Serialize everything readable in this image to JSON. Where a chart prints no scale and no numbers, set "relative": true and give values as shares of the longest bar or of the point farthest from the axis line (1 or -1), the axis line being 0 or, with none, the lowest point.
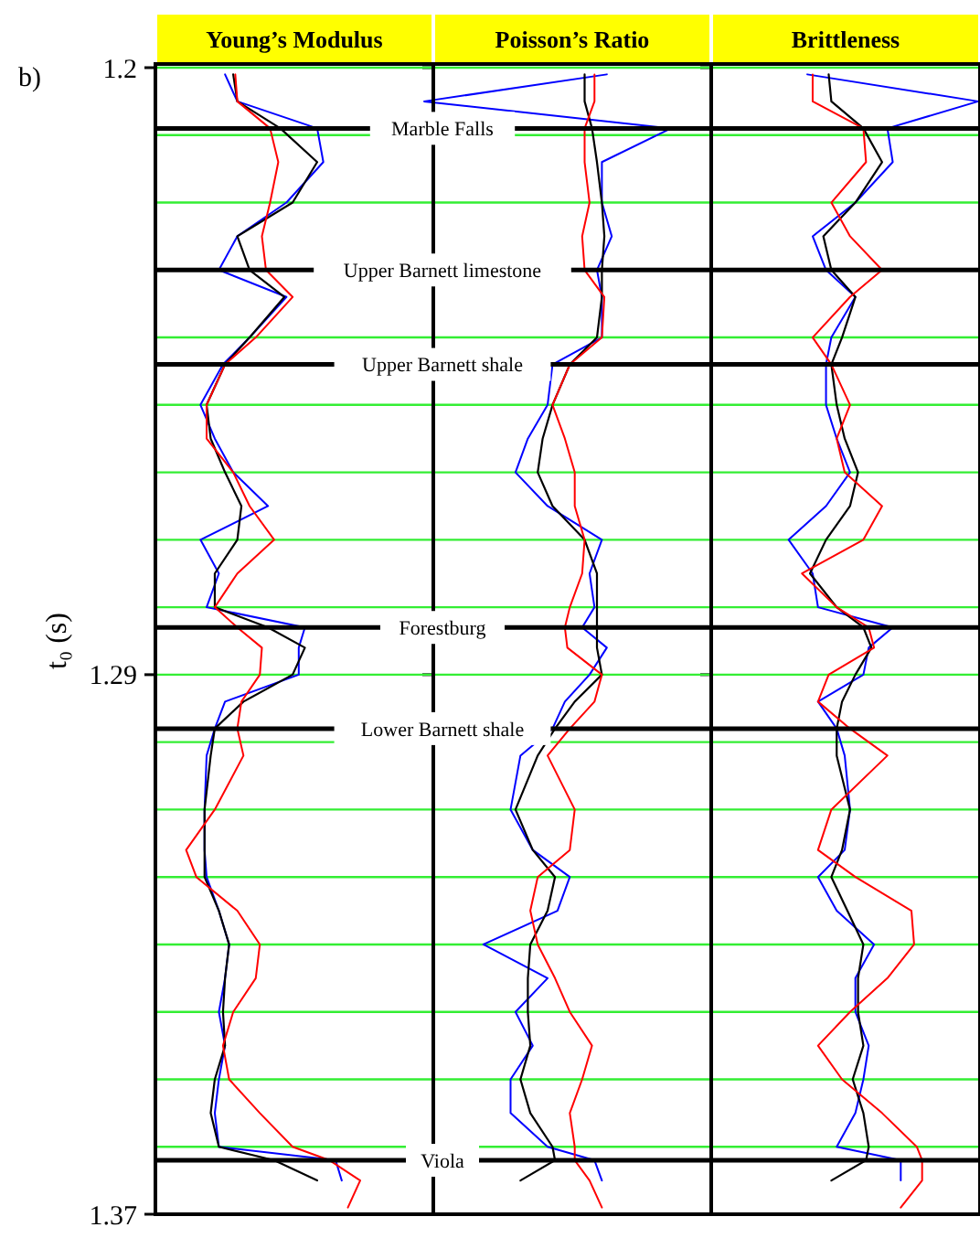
{
  "chart_data": [
    {
      "type": "line",
      "title": "Young’s Modulus",
      "ylabel": "t₀ (s)",
      "annotations": [
        "b)"
      ],
      "relative": true,
      "orientation": "horizontal",
      "ylim": [
        1.37,
        1.2
      ],
      "yticks": [
        1.2,
        {
          "value": 1.21,
          "label": null
        },
        {
          "value": 1.22,
          "label": null
        },
        {
          "value": 1.23,
          "label": null
        },
        {
          "value": 1.24,
          "label": null
        },
        {
          "value": 1.25,
          "label": null
        },
        {
          "value": 1.26,
          "label": null
        },
        {
          "value": 1.27,
          "label": null
        },
        {
          "value": 1.28,
          "label": null
        },
        1.29,
        {
          "value": 1.3,
          "label": null
        },
        {
          "value": 1.31,
          "label": null
        },
        {
          "value": 1.32,
          "label": null
        },
        {
          "value": 1.33,
          "label": null
        },
        {
          "value": 1.34,
          "label": null
        },
        {
          "value": 1.35,
          "label": null
        },
        {
          "value": 1.36,
          "label": null
        },
        1.37
      ],
      "grid": "y",
      "tick_labels": "y",
      "x": [
        1.201,
        1.205,
        1.209,
        1.214,
        1.22,
        1.225,
        1.23,
        1.234,
        1.24,
        1.244,
        1.25,
        1.255,
        1.26,
        1.265,
        1.27,
        1.275,
        1.28,
        1.283,
        1.286,
        1.29,
        1.294,
        1.298,
        1.302,
        1.31,
        1.316,
        1.32,
        1.325,
        1.33,
        1.335,
        1.34,
        1.345,
        1.35,
        1.355,
        1.36,
        1.362,
        1.365,
        1.369
      ],
      "series": [
        {
          "color": "#0000ff",
          "values": [
            0.34,
            0.4,
            0.79,
            0.82,
            0.64,
            0.4,
            0.31,
            0.64,
            0.46,
            0.33,
            0.22,
            0.29,
            0.38,
            0.55,
            0.22,
            0.31,
            0.25,
            0.73,
            0.7,
            0.7,
            0.34,
            0.29,
            0.25,
            0.24,
            0.24,
            0.25,
            0.31,
            0.36,
            0.34,
            0.31,
            0.34,
            0.31,
            0.29,
            0.31,
            0.88,
            0.91,
            null
          ]
        },
        {
          "color": "#000000",
          "values": [
            0.38,
            0.4,
            0.61,
            0.79,
            0.67,
            0.4,
            0.46,
            0.63,
            0.46,
            0.34,
            0.25,
            0.27,
            0.34,
            0.42,
            0.4,
            0.29,
            0.29,
            0.55,
            0.73,
            0.67,
            0.43,
            0.29,
            0.27,
            0.24,
            0.24,
            0.24,
            0.31,
            0.36,
            0.34,
            0.33,
            0.34,
            0.29,
            0.27,
            0.31,
            0.58,
            0.79,
            null
          ]
        },
        {
          "color": "#ff0000",
          "values": [
            0.39,
            0.4,
            0.56,
            0.6,
            0.56,
            0.52,
            0.54,
            0.67,
            0.49,
            0.34,
            0.25,
            0.25,
            0.38,
            0.46,
            0.58,
            0.4,
            0.29,
            0.4,
            0.52,
            0.51,
            0.42,
            0.4,
            0.43,
            0.29,
            0.15,
            0.2,
            0.4,
            0.51,
            0.49,
            0.38,
            0.33,
            0.36,
            0.51,
            0.67,
            0.85,
            1.0,
            0.94
          ]
        }
      ],
      "ref_lines": [
        {
          "axis": "y",
          "value": 1.209,
          "label": "Marble Falls"
        },
        {
          "axis": "y",
          "value": 1.23,
          "label": "Upper Barnett limestone"
        },
        {
          "axis": "y",
          "value": 1.244,
          "label": "Upper Barnett shale"
        },
        {
          "axis": "y",
          "value": 1.283,
          "label": "Forestburg"
        },
        {
          "axis": "y",
          "value": 1.298,
          "label": "Lower Barnett shale"
        },
        {
          "axis": "y",
          "value": 1.362,
          "label": "Viola"
        }
      ]
    },
    {
      "type": "line",
      "title": "Poisson’s Ratio",
      "relative": true,
      "orientation": "horizontal",
      "ylim": [
        1.37,
        1.2
      ],
      "yticks": [
        1.2,
        {
          "value": 1.21,
          "label": null
        },
        {
          "value": 1.22,
          "label": null
        },
        {
          "value": 1.23,
          "label": null
        },
        {
          "value": 1.24,
          "label": null
        },
        {
          "value": 1.25,
          "label": null
        },
        {
          "value": 1.26,
          "label": null
        },
        {
          "value": 1.27,
          "label": null
        },
        {
          "value": 1.28,
          "label": null
        },
        1.29,
        {
          "value": 1.3,
          "label": null
        },
        {
          "value": 1.31,
          "label": null
        },
        {
          "value": 1.32,
          "label": null
        },
        {
          "value": 1.33,
          "label": null
        },
        {
          "value": 1.34,
          "label": null
        },
        {
          "value": 1.35,
          "label": null
        },
        {
          "value": 1.36,
          "label": null
        },
        1.37
      ],
      "grid": "y",
      "tick_labels": false,
      "x": [
        1.201,
        1.205,
        1.209,
        1.214,
        1.22,
        1.225,
        1.23,
        1.234,
        1.24,
        1.244,
        1.25,
        1.255,
        1.26,
        1.265,
        1.27,
        1.275,
        1.28,
        1.283,
        1.286,
        1.29,
        1.294,
        1.298,
        1.302,
        1.31,
        1.316,
        1.32,
        1.325,
        1.33,
        1.335,
        1.34,
        1.345,
        1.35,
        1.355,
        1.36,
        1.362,
        1.365,
        1.369
      ],
      "series": [
        {
          "color": "#0000ff",
          "values": [
            0.74,
            0,
            1.0,
            0.72,
            0.72,
            0.76,
            0.7,
            0.72,
            0.72,
            0.52,
            0.5,
            0.42,
            0.37,
            0.5,
            0.72,
            0.67,
            0.69,
            0.64,
            0.74,
            0.67,
            0.57,
            0.52,
            0.39,
            0.35,
            0.44,
            0.59,
            0.54,
            0.24,
            0.5,
            0.37,
            0.44,
            0.35,
            0.35,
            0.5,
            0.69,
            0.72,
            null
          ]
        },
        {
          "color": "#000000",
          "values": [
            0.65,
            0.65,
            0.68,
            0.7,
            0.72,
            0.73,
            0.72,
            0.72,
            0.7,
            0.59,
            0.52,
            0.48,
            0.46,
            0.52,
            0.65,
            0.7,
            0.7,
            0.7,
            0.7,
            0.72,
            0.61,
            0.53,
            0.46,
            0.37,
            0.44,
            0.53,
            0.5,
            0.43,
            0.42,
            0.42,
            0.43,
            0.39,
            0.43,
            0.52,
            0.53,
            0.39,
            null
          ]
        },
        {
          "color": "#ff0000",
          "values": [
            0.69,
            0.69,
            0.65,
            0.65,
            0.67,
            0.64,
            0.65,
            0.73,
            0.72,
            0.59,
            0.52,
            0.57,
            0.61,
            0.61,
            0.65,
            0.64,
            0.59,
            0.57,
            0.58,
            0.72,
            0.69,
            0.59,
            0.5,
            0.61,
            0.59,
            0.46,
            0.43,
            0.46,
            0.53,
            0.59,
            0.68,
            0.64,
            0.59,
            0.61,
            0.61,
            0.67,
            0.72
          ]
        }
      ],
      "ref_lines": [
        {
          "axis": "y",
          "value": 1.209
        },
        {
          "axis": "y",
          "value": 1.23
        },
        {
          "axis": "y",
          "value": 1.244
        },
        {
          "axis": "y",
          "value": 1.283
        },
        {
          "axis": "y",
          "value": 1.298
        },
        {
          "axis": "y",
          "value": 1.362
        }
      ]
    },
    {
      "type": "line",
      "title": "Brittleness",
      "relative": true,
      "orientation": "horizontal",
      "ylim": [
        1.37,
        1.2
      ],
      "yticks": [
        1.2,
        {
          "value": 1.21,
          "label": null
        },
        {
          "value": 1.22,
          "label": null
        },
        {
          "value": 1.23,
          "label": null
        },
        {
          "value": 1.24,
          "label": null
        },
        {
          "value": 1.25,
          "label": null
        },
        {
          "value": 1.26,
          "label": null
        },
        {
          "value": 1.27,
          "label": null
        },
        {
          "value": 1.28,
          "label": null
        },
        1.29,
        {
          "value": 1.3,
          "label": null
        },
        {
          "value": 1.31,
          "label": null
        },
        {
          "value": 1.32,
          "label": null
        },
        {
          "value": 1.33,
          "label": null
        },
        {
          "value": 1.34,
          "label": null
        },
        {
          "value": 1.35,
          "label": null
        },
        {
          "value": 1.36,
          "label": null
        },
        1.37
      ],
      "grid": "y",
      "tick_labels": false,
      "x": [
        1.201,
        1.205,
        1.209,
        1.214,
        1.22,
        1.225,
        1.23,
        1.234,
        1.24,
        1.244,
        1.25,
        1.255,
        1.26,
        1.265,
        1.27,
        1.275,
        1.28,
        1.283,
        1.286,
        1.29,
        1.294,
        1.298,
        1.302,
        1.31,
        1.316,
        1.32,
        1.325,
        1.33,
        1.335,
        1.34,
        1.345,
        1.35,
        1.355,
        1.36,
        1.362,
        1.365,
        1.369
      ],
      "series": [
        {
          "color": "#0000ff",
          "values": [
            0.36,
            1.0,
            0.66,
            0.68,
            0.54,
            0.38,
            0.43,
            0.54,
            0.45,
            0.43,
            0.43,
            0.47,
            0.52,
            0.43,
            0.29,
            0.38,
            0.4,
            0.68,
            0.59,
            0.57,
            0.4,
            0.47,
            0.5,
            0.52,
            0.5,
            0.4,
            0.47,
            0.61,
            0.54,
            0.54,
            0.59,
            0.57,
            0.54,
            0.47,
            0.71,
            0.71,
            null
          ]
        },
        {
          "color": "#000000",
          "values": [
            0.44,
            0.45,
            0.57,
            0.64,
            0.54,
            0.42,
            0.45,
            0.54,
            0.49,
            0.45,
            0.47,
            0.5,
            0.55,
            0.52,
            0.43,
            0.37,
            0.47,
            0.57,
            0.6,
            0.54,
            0.49,
            0.47,
            0.47,
            0.52,
            0.49,
            0.45,
            0.51,
            0.57,
            0.55,
            0.55,
            0.57,
            0.53,
            0.57,
            0.59,
            0.58,
            0.45,
            null
          ]
        },
        {
          "color": "#ff0000",
          "values": [
            0.38,
            0.38,
            0.57,
            0.58,
            0.45,
            0.52,
            0.64,
            0.52,
            0.38,
            0.45,
            0.52,
            0.47,
            0.5,
            0.64,
            0.57,
            0.34,
            0.47,
            0.59,
            0.61,
            0.44,
            0.4,
            0.52,
            0.66,
            0.45,
            0.4,
            0.54,
            0.75,
            0.76,
            0.66,
            0.52,
            0.4,
            0.49,
            0.64,
            0.77,
            0.79,
            0.79,
            0.71
          ]
        }
      ],
      "ref_lines": [
        {
          "axis": "y",
          "value": 1.209
        },
        {
          "axis": "y",
          "value": 1.23
        },
        {
          "axis": "y",
          "value": 1.244
        },
        {
          "axis": "y",
          "value": 1.283
        },
        {
          "axis": "y",
          "value": 1.298
        },
        {
          "axis": "y",
          "value": 1.362
        }
      ]
    }
  ]
}
